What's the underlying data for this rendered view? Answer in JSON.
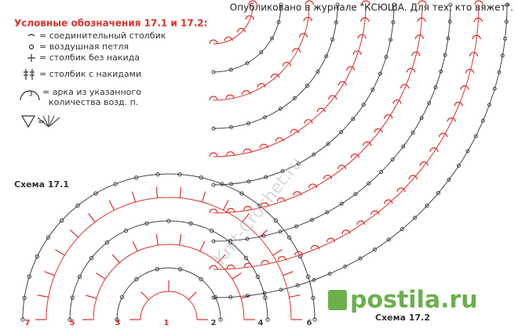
{
  "header": {
    "publication": "Опубликовано в журнале \"КСЮША. Для тех, кто вяжет\"."
  },
  "legend": {
    "title": "Условные обозначения 17.1 и 17.2:",
    "items": [
      "= соединительный столбик",
      "= воздушная петля",
      "= столбик без накида",
      "= столбик с накидами",
      "= арка из указанного",
      "количества возд. п.",
      "="
    ]
  },
  "schemes": [
    {
      "label": "Схема 17.1",
      "rows": [
        "7",
        "5",
        "3",
        "1",
        "2",
        "4",
        "6"
      ]
    },
    {
      "label": "Схема 17.2"
    }
  ],
  "watermark": "Knit-Crochet.ru",
  "logo": "postila.ru"
}
